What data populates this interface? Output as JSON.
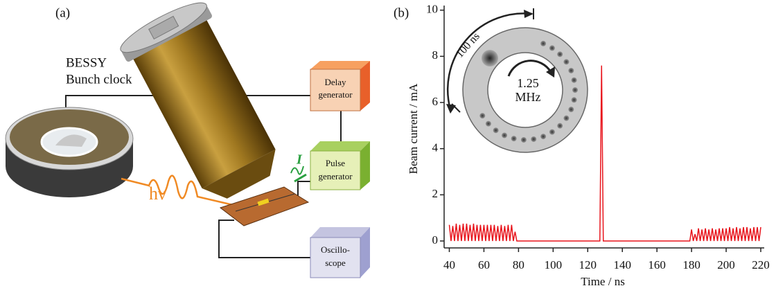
{
  "diagram": {
    "panel_label": "(a)",
    "source": [
      "BESSY",
      "Bunch clock"
    ],
    "delay": [
      "Delay",
      "generator"
    ],
    "pulse": [
      "Pulse",
      "generator"
    ],
    "scope": [
      "Oscillo-",
      "scope"
    ],
    "photon": "hν",
    "current": "I"
  },
  "chart_data": {
    "type": "line",
    "panel_label": "(b)",
    "x_label": "Time / ns",
    "y_label": "Beam current / mA",
    "color": "#e8141c",
    "inset_labels": [
      "100 ns",
      "1.25",
      "MHz"
    ],
    "xlim": [
      37,
      222
    ],
    "ylim": [
      -0.3,
      10.2
    ],
    "xticks": [
      40,
      60,
      80,
      100,
      120,
      140,
      160,
      180,
      200,
      220
    ],
    "yticks": [
      0,
      2,
      4,
      6,
      8,
      10
    ],
    "x": [
      40,
      41,
      42,
      43,
      44,
      45,
      46,
      47,
      48,
      49,
      50,
      51,
      52,
      53,
      54,
      55,
      56,
      57,
      58,
      59,
      60,
      61,
      62,
      63,
      64,
      65,
      66,
      67,
      68,
      69,
      70,
      71,
      72,
      73,
      74,
      75,
      76,
      77,
      78,
      79,
      127,
      128,
      129,
      179,
      180,
      181,
      182,
      183,
      184,
      185,
      186,
      187,
      188,
      189,
      190,
      191,
      192,
      193,
      194,
      195,
      196,
      197,
      198,
      199,
      200,
      201,
      202,
      203,
      204,
      205,
      206,
      207,
      208,
      209,
      210,
      211,
      212,
      213,
      214,
      215,
      216,
      217,
      218,
      219,
      220
    ],
    "values": [
      0.7,
      0,
      0.65,
      0,
      0.75,
      0,
      0.7,
      0,
      0.75,
      0,
      0.75,
      0,
      0.7,
      0,
      0.75,
      0,
      0.7,
      0,
      0.7,
      0,
      0.7,
      0,
      0.7,
      0,
      0.7,
      0,
      0.7,
      0,
      0.65,
      0,
      0.7,
      0,
      0.65,
      0,
      0.7,
      0,
      0.7,
      0,
      0.4,
      0,
      0,
      7.6,
      0,
      0,
      0.5,
      0,
      0.3,
      0,
      0.55,
      0,
      0.5,
      0,
      0.55,
      0,
      0.5,
      0,
      0.55,
      0,
      0.5,
      0,
      0.55,
      0,
      0.55,
      0,
      0.55,
      0,
      0.6,
      0,
      0.55,
      0,
      0.6,
      0,
      0.55,
      0,
      0.6,
      0,
      0.6,
      0,
      0.55,
      0,
      0.6,
      0,
      0.6,
      0,
      0.6
    ]
  }
}
